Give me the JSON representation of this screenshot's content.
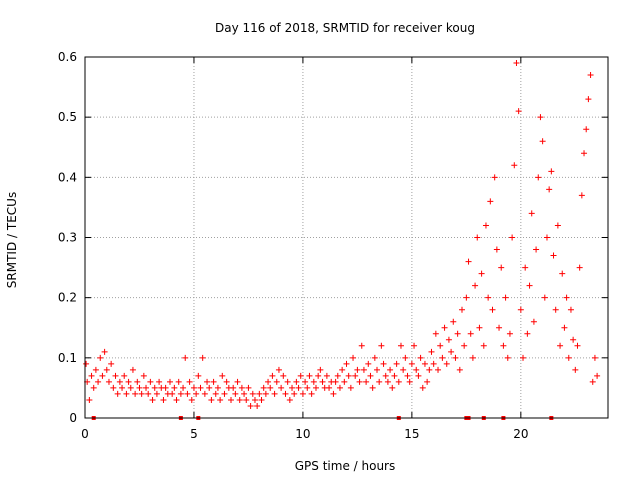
{
  "chart_data": {
    "type": "scatter",
    "title": "Day 116 of 2018, SRMTID for receiver koug",
    "xlabel": "GPS time / hours",
    "ylabel": "SRMTID / TECUs",
    "xlim": [
      0,
      24
    ],
    "ylim": [
      0,
      0.6
    ],
    "x_ticks": [
      0,
      5,
      10,
      15,
      20
    ],
    "y_ticks": [
      0,
      0.1,
      0.2,
      0.3,
      0.4,
      0.5,
      0.6
    ],
    "grid": true,
    "marker": "+",
    "series": [
      {
        "name": "SRMTID",
        "color": "#ff0000",
        "points": [
          [
            0.05,
            0.09
          ],
          [
            0.1,
            0.06
          ],
          [
            0.2,
            0.03
          ],
          [
            0.3,
            0.07
          ],
          [
            0.4,
            0.05
          ],
          [
            0.5,
            0.08
          ],
          [
            0.6,
            0.06
          ],
          [
            0.7,
            0.1
          ],
          [
            0.8,
            0.07
          ],
          [
            0.9,
            0.11
          ],
          [
            1.0,
            0.08
          ],
          [
            1.1,
            0.06
          ],
          [
            1.2,
            0.09
          ],
          [
            1.3,
            0.05
          ],
          [
            1.4,
            0.07
          ],
          [
            1.5,
            0.04
          ],
          [
            1.6,
            0.06
          ],
          [
            1.7,
            0.05
          ],
          [
            1.8,
            0.07
          ],
          [
            1.9,
            0.04
          ],
          [
            2.0,
            0.06
          ],
          [
            2.1,
            0.05
          ],
          [
            2.2,
            0.08
          ],
          [
            2.3,
            0.04
          ],
          [
            2.4,
            0.06
          ],
          [
            2.5,
            0.05
          ],
          [
            2.6,
            0.04
          ],
          [
            2.7,
            0.07
          ],
          [
            2.8,
            0.05
          ],
          [
            2.9,
            0.04
          ],
          [
            3.0,
            0.06
          ],
          [
            3.1,
            0.03
          ],
          [
            3.2,
            0.05
          ],
          [
            3.3,
            0.04
          ],
          [
            3.4,
            0.06
          ],
          [
            3.5,
            0.05
          ],
          [
            3.6,
            0.03
          ],
          [
            3.7,
            0.05
          ],
          [
            3.8,
            0.04
          ],
          [
            3.9,
            0.06
          ],
          [
            4.0,
            0.04
          ],
          [
            4.1,
            0.05
          ],
          [
            4.2,
            0.03
          ],
          [
            4.3,
            0.06
          ],
          [
            4.4,
            0.04
          ],
          [
            4.5,
            0.05
          ],
          [
            4.6,
            0.1
          ],
          [
            4.7,
            0.04
          ],
          [
            4.8,
            0.06
          ],
          [
            4.9,
            0.03
          ],
          [
            5.0,
            0.05
          ],
          [
            5.1,
            0.04
          ],
          [
            5.2,
            0.07
          ],
          [
            5.3,
            0.05
          ],
          [
            5.4,
            0.1
          ],
          [
            5.5,
            0.04
          ],
          [
            5.6,
            0.06
          ],
          [
            5.7,
            0.05
          ],
          [
            5.8,
            0.03
          ],
          [
            5.9,
            0.06
          ],
          [
            6.0,
            0.04
          ],
          [
            6.1,
            0.05
          ],
          [
            6.2,
            0.03
          ],
          [
            6.3,
            0.07
          ],
          [
            6.4,
            0.04
          ],
          [
            6.5,
            0.06
          ],
          [
            6.6,
            0.05
          ],
          [
            6.7,
            0.03
          ],
          [
            6.8,
            0.05
          ],
          [
            6.9,
            0.04
          ],
          [
            7.0,
            0.06
          ],
          [
            7.1,
            0.03
          ],
          [
            7.2,
            0.05
          ],
          [
            7.3,
            0.04
          ],
          [
            7.4,
            0.03
          ],
          [
            7.5,
            0.05
          ],
          [
            7.6,
            0.02
          ],
          [
            7.7,
            0.04
          ],
          [
            7.8,
            0.03
          ],
          [
            7.9,
            0.02
          ],
          [
            8.0,
            0.04
          ],
          [
            8.1,
            0.03
          ],
          [
            8.2,
            0.05
          ],
          [
            8.3,
            0.04
          ],
          [
            8.4,
            0.06
          ],
          [
            8.5,
            0.05
          ],
          [
            8.6,
            0.07
          ],
          [
            8.7,
            0.04
          ],
          [
            8.8,
            0.06
          ],
          [
            8.9,
            0.08
          ],
          [
            9.0,
            0.05
          ],
          [
            9.1,
            0.07
          ],
          [
            9.2,
            0.04
          ],
          [
            9.3,
            0.06
          ],
          [
            9.4,
            0.03
          ],
          [
            9.5,
            0.05
          ],
          [
            9.6,
            0.04
          ],
          [
            9.7,
            0.06
          ],
          [
            9.8,
            0.05
          ],
          [
            9.9,
            0.07
          ],
          [
            10.0,
            0.04
          ],
          [
            10.1,
            0.06
          ],
          [
            10.2,
            0.05
          ],
          [
            10.3,
            0.07
          ],
          [
            10.4,
            0.04
          ],
          [
            10.5,
            0.06
          ],
          [
            10.6,
            0.05
          ],
          [
            10.7,
            0.07
          ],
          [
            10.8,
            0.08
          ],
          [
            10.9,
            0.06
          ],
          [
            11.0,
            0.05
          ],
          [
            11.1,
            0.07
          ],
          [
            11.2,
            0.05
          ],
          [
            11.3,
            0.06
          ],
          [
            11.4,
            0.04
          ],
          [
            11.5,
            0.06
          ],
          [
            11.6,
            0.07
          ],
          [
            11.7,
            0.05
          ],
          [
            11.8,
            0.08
          ],
          [
            11.9,
            0.06
          ],
          [
            12.0,
            0.09
          ],
          [
            12.1,
            0.07
          ],
          [
            12.2,
            0.05
          ],
          [
            12.3,
            0.1
          ],
          [
            12.4,
            0.07
          ],
          [
            12.5,
            0.08
          ],
          [
            12.6,
            0.06
          ],
          [
            12.7,
            0.12
          ],
          [
            12.8,
            0.08
          ],
          [
            12.9,
            0.06
          ],
          [
            13.0,
            0.09
          ],
          [
            13.1,
            0.07
          ],
          [
            13.2,
            0.05
          ],
          [
            13.3,
            0.1
          ],
          [
            13.4,
            0.08
          ],
          [
            13.5,
            0.06
          ],
          [
            13.6,
            0.12
          ],
          [
            13.7,
            0.09
          ],
          [
            13.8,
            0.07
          ],
          [
            13.9,
            0.06
          ],
          [
            14.0,
            0.08
          ],
          [
            14.1,
            0.05
          ],
          [
            14.2,
            0.07
          ],
          [
            14.3,
            0.09
          ],
          [
            14.4,
            0.06
          ],
          [
            14.5,
            0.12
          ],
          [
            14.6,
            0.08
          ],
          [
            14.7,
            0.1
          ],
          [
            14.8,
            0.07
          ],
          [
            14.9,
            0.06
          ],
          [
            15.0,
            0.09
          ],
          [
            15.1,
            0.12
          ],
          [
            15.2,
            0.08
          ],
          [
            15.3,
            0.07
          ],
          [
            15.4,
            0.1
          ],
          [
            15.5,
            0.05
          ],
          [
            15.6,
            0.09
          ],
          [
            15.7,
            0.06
          ],
          [
            15.8,
            0.08
          ],
          [
            15.9,
            0.11
          ],
          [
            16.0,
            0.09
          ],
          [
            16.1,
            0.14
          ],
          [
            16.2,
            0.08
          ],
          [
            16.3,
            0.12
          ],
          [
            16.4,
            0.1
          ],
          [
            16.5,
            0.15
          ],
          [
            16.6,
            0.09
          ],
          [
            16.7,
            0.13
          ],
          [
            16.8,
            0.11
          ],
          [
            16.9,
            0.16
          ],
          [
            17.0,
            0.1
          ],
          [
            17.1,
            0.14
          ],
          [
            17.2,
            0.08
          ],
          [
            17.3,
            0.18
          ],
          [
            17.4,
            0.12
          ],
          [
            17.5,
            0.2
          ],
          [
            17.6,
            0.26
          ],
          [
            17.7,
            0.14
          ],
          [
            17.8,
            0.1
          ],
          [
            17.9,
            0.22
          ],
          [
            18.0,
            0.3
          ],
          [
            18.1,
            0.15
          ],
          [
            18.2,
            0.24
          ],
          [
            18.3,
            0.12
          ],
          [
            18.4,
            0.32
          ],
          [
            18.5,
            0.2
          ],
          [
            18.6,
            0.36
          ],
          [
            18.7,
            0.18
          ],
          [
            18.8,
            0.4
          ],
          [
            18.9,
            0.28
          ],
          [
            19.0,
            0.15
          ],
          [
            19.1,
            0.25
          ],
          [
            19.2,
            0.12
          ],
          [
            19.3,
            0.2
          ],
          [
            19.4,
            0.1
          ],
          [
            19.5,
            0.14
          ],
          [
            19.6,
            0.3
          ],
          [
            19.7,
            0.42
          ],
          [
            19.8,
            0.59
          ],
          [
            19.9,
            0.51
          ],
          [
            20.0,
            0.18
          ],
          [
            20.1,
            0.1
          ],
          [
            20.2,
            0.25
          ],
          [
            20.3,
            0.14
          ],
          [
            20.4,
            0.22
          ],
          [
            20.5,
            0.34
          ],
          [
            20.6,
            0.16
          ],
          [
            20.7,
            0.28
          ],
          [
            20.8,
            0.4
          ],
          [
            20.9,
            0.5
          ],
          [
            21.0,
            0.46
          ],
          [
            21.1,
            0.2
          ],
          [
            21.2,
            0.3
          ],
          [
            21.3,
            0.38
          ],
          [
            21.4,
            0.41
          ],
          [
            21.5,
            0.27
          ],
          [
            21.6,
            0.18
          ],
          [
            21.7,
            0.32
          ],
          [
            21.8,
            0.12
          ],
          [
            21.9,
            0.24
          ],
          [
            22.0,
            0.15
          ],
          [
            22.1,
            0.2
          ],
          [
            22.2,
            0.1
          ],
          [
            22.3,
            0.18
          ],
          [
            22.4,
            0.13
          ],
          [
            22.5,
            0.08
          ],
          [
            22.6,
            0.12
          ],
          [
            22.7,
            0.25
          ],
          [
            22.8,
            0.37
          ],
          [
            22.9,
            0.44
          ],
          [
            23.0,
            0.48
          ],
          [
            23.1,
            0.53
          ],
          [
            23.2,
            0.57
          ],
          [
            23.3,
            0.06
          ],
          [
            23.4,
            0.1
          ],
          [
            23.5,
            0.07
          ]
        ]
      }
    ],
    "axis_marks_x": [
      0.4,
      4.4,
      5.2,
      14.4,
      17.5,
      17.6,
      18.3,
      19.2,
      21.4
    ]
  }
}
